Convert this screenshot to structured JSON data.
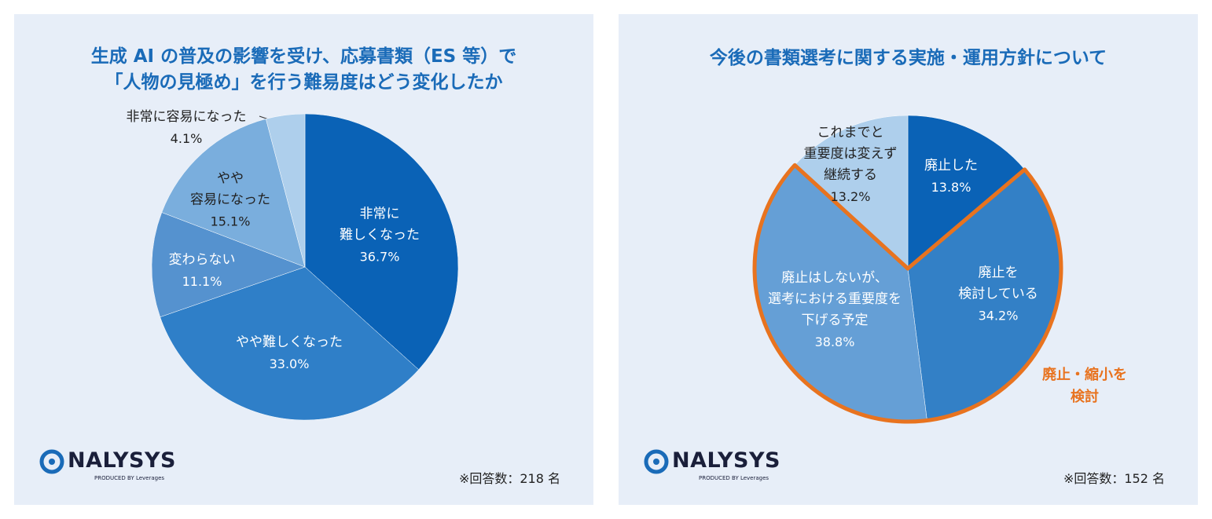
{
  "chart_data": [
    {
      "type": "pie",
      "title": "生成 AI の普及の影響を受け、応募書類（ES 等）で\n「人物の見極め」を行う難易度はどう変化したか",
      "categories": [
        "非常に\n難しくなった",
        "やや難しくなった",
        "変わらない",
        "やや\n容易になった",
        "非常に容易になった"
      ],
      "values": [
        36.7,
        33.0,
        11.1,
        15.1,
        4.1
      ],
      "value_labels": [
        "36.7%",
        "33.0%",
        "11.1%",
        "15.1%",
        "4.1%"
      ],
      "colors": [
        "#0a62b6",
        "#2f7fc8",
        "#5592cf",
        "#7aaedd",
        "#aecfec"
      ],
      "logo": "NALYSYS",
      "logo_sub": "PRODUCED BY Leverages",
      "note": "※回答数：218 名"
    },
    {
      "type": "pie",
      "title": "今後の書類選考に関する実施・運用方針について",
      "categories": [
        "廃止した",
        "廃止を\n検討している",
        "廃止はしないが、\n選考における重要度を\n下げる予定",
        "これまでと\n重要度は変えず\n継続する"
      ],
      "values": [
        13.8,
        34.2,
        38.8,
        13.2
      ],
      "value_labels": [
        "13.8%",
        "34.2%",
        "38.8%",
        "13.2%"
      ],
      "colors": [
        "#0a62b6",
        "#3380c6",
        "#659fd6",
        "#aecfec"
      ],
      "annotation": "廃止・縮小を\n検討",
      "annotation_color": "#e8731f",
      "logo": "NALYSYS",
      "logo_sub": "PRODUCED BY Leverages",
      "note": "※回答数：152 名"
    }
  ]
}
